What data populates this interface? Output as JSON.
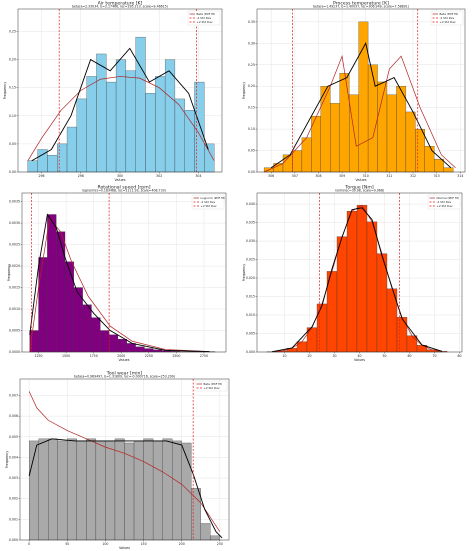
{
  "chart_data": [
    {
      "type": "histogram",
      "title": "Air temperature [K]",
      "subtitle": "beta(a=2.33034, b=2.17466, loc=295.213, scale=9.46615)",
      "xlabel": "Values",
      "ylabel": "Frequency",
      "color": "#87ceeb",
      "grid": true,
      "legend": "upper right",
      "bins": [
        295.3,
        295.8,
        296.3,
        296.8,
        297.3,
        297.8,
        298.3,
        298.8,
        299.3,
        299.8,
        300.3,
        300.8,
        301.3,
        301.8,
        302.3,
        302.8,
        303.3,
        303.8,
        304.3,
        304.8
      ],
      "values": [
        0.02,
        0.04,
        0.03,
        0.05,
        0.08,
        0.13,
        0.17,
        0.21,
        0.16,
        0.2,
        0.18,
        0.24,
        0.14,
        0.17,
        0.2,
        0.13,
        0.11,
        0.16,
        0.05
      ],
      "xlim": [
        294.8,
        305.2
      ],
      "ylim": [
        0,
        0.29
      ],
      "xticks": [
        296,
        298,
        300,
        302,
        304
      ],
      "yticks": [
        {
          "value": 0,
          "label": "0.00"
        },
        {
          "value": 0.05,
          "label": "0.05"
        },
        {
          "value": 0.1,
          "label": "0.10"
        },
        {
          "value": 0.15,
          "label": "0.15"
        },
        {
          "value": 0.2,
          "label": "0.20"
        },
        {
          "value": 0.25,
          "label": "0.25"
        }
      ],
      "lines": [
        {
          "name": "Beta (PDF fit)",
          "color": "#b22222",
          "x": [
            295.3,
            296,
            297,
            298,
            299,
            300,
            301,
            302,
            303,
            304,
            304.8
          ],
          "values": [
            0.02,
            0.06,
            0.11,
            0.145,
            0.165,
            0.17,
            0.167,
            0.15,
            0.12,
            0.07,
            0.02
          ]
        },
        {
          "color": "#000000",
          "x": [
            295.5,
            296.5,
            297.5,
            298.5,
            299.5,
            300.5,
            301.5,
            302.5,
            303.5,
            304.5
          ],
          "values": [
            0.02,
            0.04,
            0.1,
            0.2,
            0.18,
            0.22,
            0.16,
            0.18,
            0.14,
            0.04
          ]
        }
      ],
      "vlines": [
        {
          "name": "-2 Std Dev",
          "color": "#e31a1c",
          "x": 296.9
        },
        {
          "name": "+2 Std Dev",
          "color": "#e31a1c",
          "x": 303.9
        }
      ]
    },
    {
      "type": "histogram",
      "title": "Process temperature [K]",
      "subtitle": "beta(a=1.49237, b=1.40037, loc=306.949, scale=7.58891)",
      "xlabel": "Values",
      "ylabel": "Frequency",
      "color": "#ffa500",
      "grid": true,
      "legend": "upper right",
      "bins": [
        305.7,
        306.1,
        306.5,
        306.9,
        307.3,
        307.7,
        308.1,
        308.5,
        308.9,
        309.3,
        309.7,
        310.1,
        310.5,
        310.9,
        311.3,
        311.7,
        312.1,
        312.5,
        312.9,
        313.3,
        313.7
      ],
      "values": [
        0.01,
        0.02,
        0.04,
        0.05,
        0.08,
        0.13,
        0.2,
        0.16,
        0.23,
        0.18,
        0.35,
        0.25,
        0.21,
        0.18,
        0.2,
        0.14,
        0.1,
        0.06,
        0.03,
        0.01
      ],
      "xlim": [
        305.4,
        314.2
      ],
      "ylim": [
        0,
        0.38
      ],
      "xticks": [
        306,
        307,
        308,
        309,
        310,
        311,
        312,
        313,
        314
      ],
      "yticks": [
        {
          "value": 0,
          "label": "0.00"
        },
        {
          "value": 0.05,
          "label": "0.05"
        },
        {
          "value": 0.1,
          "label": "0.10"
        },
        {
          "value": 0.15,
          "label": "0.15"
        },
        {
          "value": 0.2,
          "label": "0.20"
        },
        {
          "value": 0.25,
          "label": "0.25"
        },
        {
          "value": 0.3,
          "label": "0.30"
        },
        {
          "value": 0.35,
          "label": "0.35"
        }
      ],
      "lines": [
        {
          "name": "Beta (PDF fit)",
          "color": "#b22222",
          "x": [
            305.7,
            306.5,
            307.5,
            308.5,
            309,
            309.6,
            310.3,
            311,
            311.5,
            312.3,
            313.2,
            313.8
          ],
          "values": [
            0,
            0.02,
            0.08,
            0.2,
            0.27,
            0.06,
            0.08,
            0.24,
            0.27,
            0.15,
            0.04,
            0.01
          ]
        },
        {
          "color": "#000000",
          "x": [
            306,
            306.8,
            307.6,
            308.4,
            309.2,
            310,
            310.4,
            311.2,
            312,
            312.8,
            313.6
          ],
          "values": [
            0.01,
            0.04,
            0.12,
            0.2,
            0.22,
            0.3,
            0.2,
            0.22,
            0.14,
            0.05,
            0.01
          ]
        }
      ],
      "vlines": [
        {
          "name": "-2 Std Dev",
          "color": "#e31a1c",
          "x": 306.9
        },
        {
          "name": "+2 Std Dev",
          "color": "#e31a1c",
          "x": 312.2
        }
      ]
    },
    {
      "type": "histogram",
      "title": "Rotational speed [rpm]",
      "subtitle": "lognorm(s=0.183488, loc=1111.93, scale=408.733)",
      "xlabel": "Values",
      "ylabel": "Frequency",
      "color": "#800080",
      "grid": true,
      "legend": "upper right",
      "bins": [
        1170,
        1250,
        1330,
        1410,
        1490,
        1570,
        1650,
        1730,
        1810,
        1890,
        1970,
        2050,
        2130,
        2210,
        2290,
        2370,
        2450,
        2530,
        2610,
        2690,
        2770,
        2850
      ],
      "values": [
        0.0005,
        0.0022,
        0.0032,
        0.0028,
        0.0021,
        0.0015,
        0.0011,
        0.0008,
        0.0005,
        0.0004,
        0.0003,
        0.0002,
        0.00012,
        8e-05,
        5e-05,
        3e-05,
        2e-05,
        1e-05,
        1e-05,
        1e-05,
        1e-05
      ],
      "xlim": [
        1100,
        2950
      ],
      "ylim": [
        0,
        0.0037
      ],
      "xticks": [
        1250,
        1500,
        1750,
        2000,
        2250,
        2500,
        2750
      ],
      "yticks": [
        {
          "value": 0,
          "label": "0.0000"
        },
        {
          "value": 0.0005,
          "label": "0.0005"
        },
        {
          "value": 0.001,
          "label": "0.0010"
        },
        {
          "value": 0.0015,
          "label": "0.0015"
        },
        {
          "value": 0.002,
          "label": "0.0020"
        },
        {
          "value": 0.0025,
          "label": "0.0025"
        },
        {
          "value": 0.003,
          "label": "0.0030"
        },
        {
          "value": 0.0035,
          "label": "0.0035"
        }
      ],
      "lines": [
        {
          "name": "Lognorm (PDF fit)",
          "color": "#b22222",
          "x": [
            1170,
            1250,
            1350,
            1450,
            1550,
            1700,
            1900,
            2100,
            2400,
            2800
          ],
          "values": [
            0,
            0.0015,
            0.0031,
            0.0028,
            0.0021,
            0.0013,
            0.0006,
            0.00025,
            6e-05,
            1e-05
          ]
        },
        {
          "color": "#000000",
          "x": [
            1170,
            1250,
            1330,
            1410,
            1490,
            1600,
            1750,
            1900,
            2100,
            2400,
            2800
          ],
          "values": [
            0.0004,
            0.002,
            0.0032,
            0.0029,
            0.0022,
            0.0014,
            0.0009,
            0.0005,
            0.0002,
            4e-05,
            1e-05
          ]
        }
      ],
      "vlines": [
        {
          "name": "-2 Std Dev",
          "color": "#e31a1c",
          "x": 1185
        },
        {
          "name": "+2 Std Dev",
          "color": "#e31a1c",
          "x": 1890
        }
      ]
    },
    {
      "type": "histogram",
      "title": "Torque [Nm]",
      "subtitle": "norm(loc=39.98, scale=9.968)",
      "xlabel": "Values",
      "ylabel": "Frequency",
      "color": "#ff4500",
      "grid": true,
      "legend": "upper right",
      "bins": [
        3,
        7,
        11,
        15,
        19,
        23,
        27,
        31,
        35,
        39,
        43,
        47,
        51,
        55,
        59,
        63,
        67,
        71,
        75
      ],
      "values": [
        9e-05,
        0.0003,
        0.001,
        0.0028,
        0.0066,
        0.013,
        0.0218,
        0.0312,
        0.0381,
        0.0397,
        0.0352,
        0.0266,
        0.0171,
        0.0094,
        0.0044,
        0.0018,
        0.0006,
        0.0002
      ],
      "xlim": [
        -1,
        81
      ],
      "ylim": [
        0,
        0.043
      ],
      "xticks": [
        10,
        20,
        30,
        40,
        50,
        60,
        70,
        80
      ],
      "yticks": [
        {
          "value": 0,
          "label": "0.000"
        },
        {
          "value": 0.005,
          "label": "0.005"
        },
        {
          "value": 0.01,
          "label": "0.010"
        },
        {
          "value": 0.015,
          "label": "0.015"
        },
        {
          "value": 0.02,
          "label": "0.020"
        },
        {
          "value": 0.025,
          "label": "0.025"
        },
        {
          "value": 0.03,
          "label": "0.030"
        },
        {
          "value": 0.035,
          "label": "0.035"
        },
        {
          "value": 0.04,
          "label": "0.040"
        }
      ],
      "lines": [
        {
          "name": "Normal (PDF fit)",
          "color": "#b22222",
          "x": [
            5,
            9,
            13,
            17,
            21,
            25,
            29,
            33,
            37,
            41,
            45,
            49,
            53,
            57,
            61,
            65,
            69,
            73
          ],
          "values": [
            9e-05,
            0.0003,
            0.001,
            0.0028,
            0.0066,
            0.013,
            0.0218,
            0.0312,
            0.0381,
            0.0397,
            0.0352,
            0.0266,
            0.0171,
            0.0094,
            0.0044,
            0.0018,
            0.0006,
            0.0002
          ]
        },
        {
          "color": "#000000",
          "x": [
            5,
            13,
            21,
            25,
            29,
            33,
            37,
            41,
            45,
            49,
            53,
            57,
            65,
            73
          ],
          "values": [
            0.0001,
            0.0011,
            0.0068,
            0.0125,
            0.0225,
            0.031,
            0.0385,
            0.039,
            0.0358,
            0.026,
            0.0175,
            0.009,
            0.0019,
            0.0002
          ]
        }
      ],
      "vlines": [
        {
          "name": "-2 Std Dev",
          "color": "#e31a1c",
          "x": 24
        },
        {
          "name": "+2 Std Dev",
          "color": "#e31a1c",
          "x": 56
        }
      ]
    },
    {
      "type": "histogram",
      "title": "Tool wear [min]",
      "subtitle": "beta(a=0.969497, b=1.31809, loc=-0.000716, scale=253.299)",
      "xlabel": "Values",
      "ylabel": "Frequency",
      "color": "#a9a9a9",
      "grid": true,
      "legend": "upper right",
      "bins": [
        0,
        12.5,
        25,
        37.5,
        50,
        62.5,
        75,
        87.5,
        100,
        112.5,
        125,
        137.5,
        150,
        162.5,
        175,
        187.5,
        200,
        212.5,
        225,
        237.5,
        250
      ],
      "values": [
        0.0048,
        0.0049,
        0.0049,
        0.0048,
        0.0049,
        0.0048,
        0.0049,
        0.0048,
        0.0048,
        0.0049,
        0.0047,
        0.0048,
        0.0049,
        0.0048,
        0.0049,
        0.0048,
        0.0047,
        0.0025,
        0.0008,
        0.0002
      ],
      "xlim": [
        -12,
        262
      ],
      "ylim": [
        0,
        0.0078
      ],
      "xticks": [
        0,
        50,
        100,
        150,
        200,
        250
      ],
      "yticks": [
        {
          "value": 0,
          "label": "0.000"
        },
        {
          "value": 0.001,
          "label": "0.001"
        },
        {
          "value": 0.002,
          "label": "0.002"
        },
        {
          "value": 0.003,
          "label": "0.003"
        },
        {
          "value": 0.004,
          "label": "0.004"
        },
        {
          "value": 0.005,
          "label": "0.005"
        },
        {
          "value": 0.006,
          "label": "0.006"
        },
        {
          "value": 0.007,
          "label": "0.007"
        }
      ],
      "lines": [
        {
          "name": "Beta (PDF fit)",
          "color": "#b22222",
          "x": [
            0,
            10,
            25,
            50,
            75,
            100,
            125,
            150,
            175,
            200,
            225,
            250
          ],
          "values": [
            0.0072,
            0.0064,
            0.0058,
            0.0053,
            0.0049,
            0.0045,
            0.0042,
            0.0038,
            0.0033,
            0.0027,
            0.0018,
            0.0004
          ]
        },
        {
          "color": "#000000",
          "x": [
            0,
            10,
            30,
            60,
            90,
            120,
            150,
            180,
            200,
            215,
            230,
            245,
            253
          ],
          "values": [
            0.0031,
            0.0046,
            0.0049,
            0.0048,
            0.0048,
            0.0048,
            0.0048,
            0.0048,
            0.0046,
            0.0032,
            0.0015,
            0.0004,
            0.0001
          ]
        }
      ],
      "vlines": [
        {
          "name": "+2 Std Dev",
          "color": "#e31a1c",
          "x": 215
        }
      ]
    }
  ]
}
